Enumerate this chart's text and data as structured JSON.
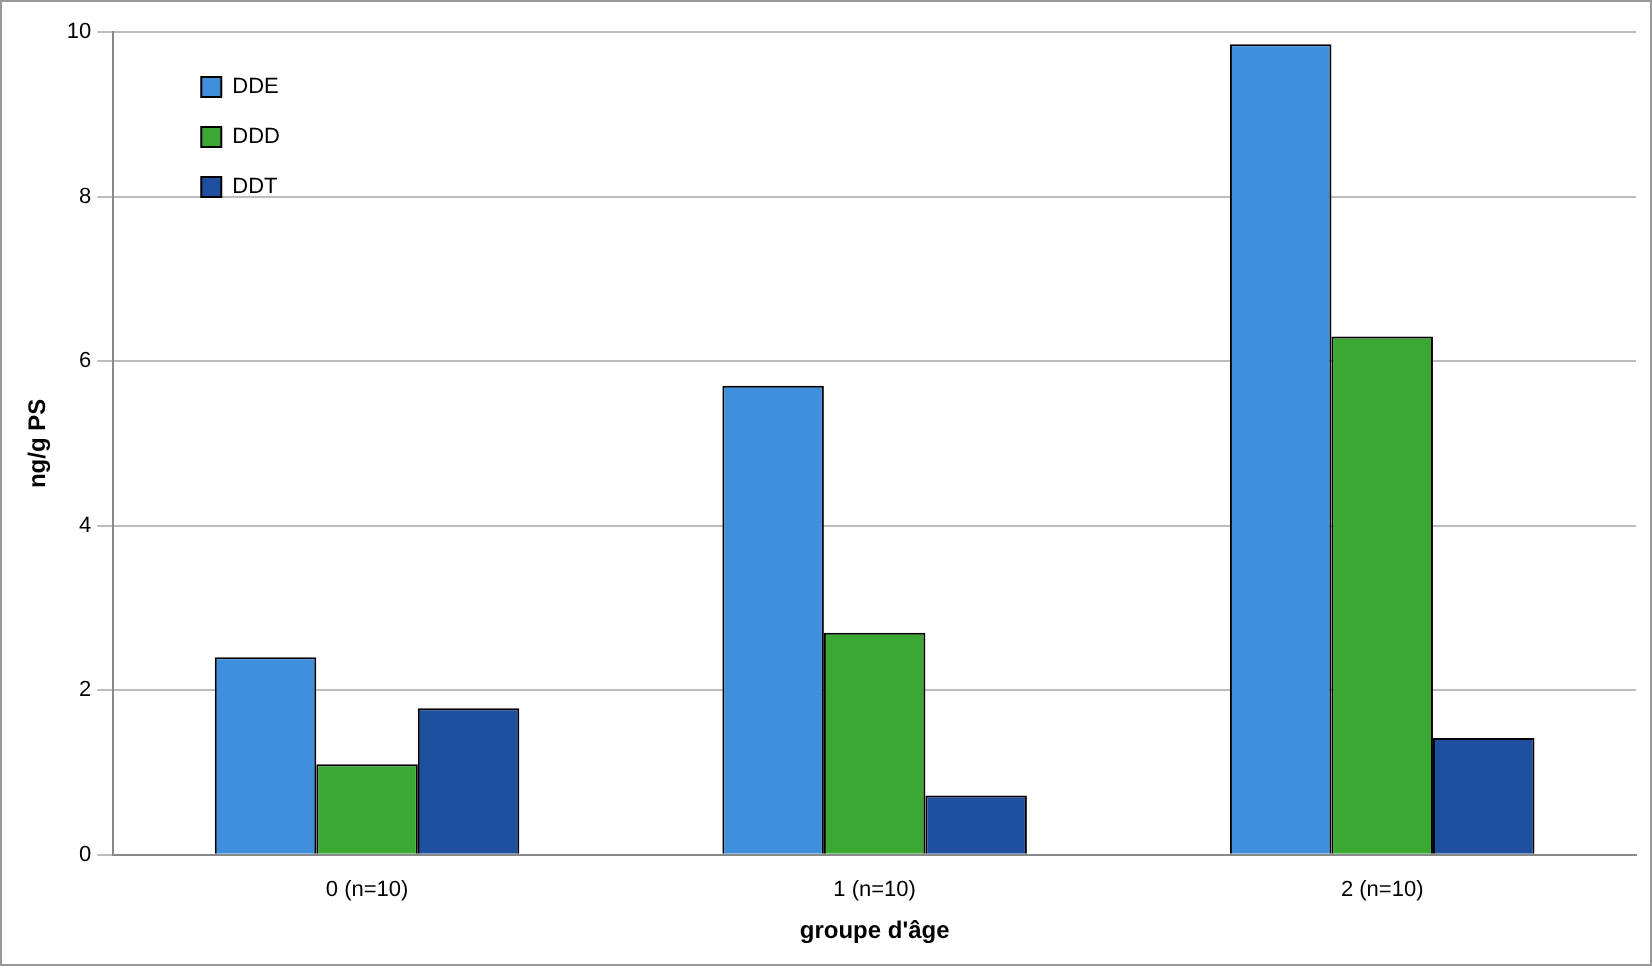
{
  "chart_data": {
    "type": "bar",
    "xlabel": "groupe d'âge",
    "ylabel": "ng/g PS",
    "categories": [
      "0 (n=10)",
      "1 (n=10)",
      "2 (n=10)"
    ],
    "series": [
      {
        "name": "DDE",
        "color": "#3f8fdc",
        "values": [
          2.4,
          5.7,
          9.85
        ]
      },
      {
        "name": "DDD",
        "color": "#3aa832",
        "values": [
          1.1,
          2.7,
          6.3
        ]
      },
      {
        "name": "DDT",
        "color": "#1f4f9f",
        "values": [
          1.78,
          0.72,
          1.42
        ]
      }
    ],
    "ylim": [
      0,
      10
    ],
    "yticks": [
      0,
      2,
      4,
      6,
      8,
      10
    ],
    "grid": "y",
    "legend": "top left"
  }
}
